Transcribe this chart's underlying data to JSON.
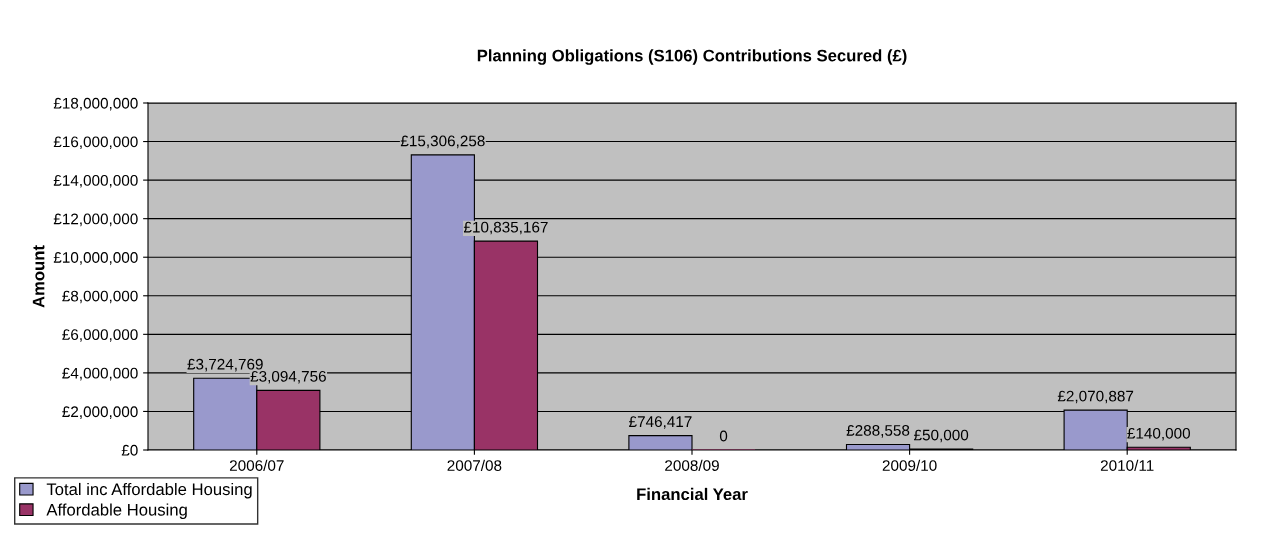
{
  "chart_data": {
    "type": "bar",
    "title": "Planning Obligations (S106) Contributions Secured (£)",
    "xlabel": "Financial Year",
    "ylabel": "Amount",
    "categories": [
      "2006/07",
      "2007/08",
      "2008/09",
      "2009/10",
      "2010/11"
    ],
    "series": [
      {
        "name": "Total inc Affordable Housing",
        "color": "#9999cc",
        "values": [
          3724769,
          15306258,
          746417,
          288558,
          2070887
        ],
        "value_labels": [
          "£3,724,769",
          "£15,306,258",
          "£746,417",
          "£288,558",
          "£2,070,887"
        ]
      },
      {
        "name": "Affordable Housing",
        "color": "#993366",
        "values": [
          3094756,
          10835167,
          0,
          50000,
          140000
        ],
        "value_labels": [
          "£3,094,756",
          "£10,835,167",
          "0",
          "£50,000",
          "£140,000"
        ]
      }
    ],
    "ylim": [
      0,
      18000000
    ],
    "yticks": [
      {
        "value": 0,
        "label": "£0"
      },
      {
        "value": 2000000,
        "label": "£2,000,000"
      },
      {
        "value": 4000000,
        "label": "£4,000,000"
      },
      {
        "value": 6000000,
        "label": "£6,000,000"
      },
      {
        "value": 8000000,
        "label": "£8,000,000"
      },
      {
        "value": 10000000,
        "label": "£10,000,000"
      },
      {
        "value": 12000000,
        "label": "£12,000,000"
      },
      {
        "value": 14000000,
        "label": "£14,000,000"
      },
      {
        "value": 16000000,
        "label": "£16,000,000"
      },
      {
        "value": 18000000,
        "label": "£18,000,000"
      }
    ],
    "grid": "y",
    "legend": "bottom left"
  }
}
